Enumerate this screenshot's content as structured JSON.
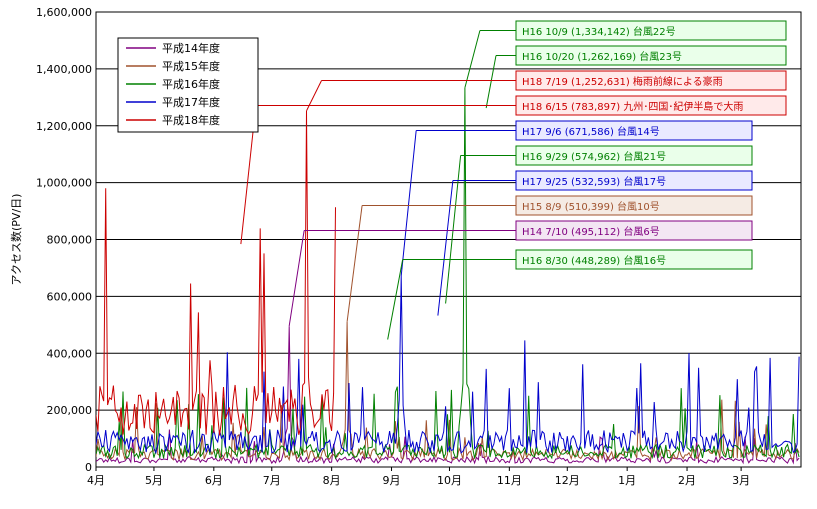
{
  "chart_data": {
    "type": "line",
    "ylabel": "アクセス数(PV/日)",
    "ylim": [
      0,
      1600000
    ],
    "yticks": [
      "0",
      "200,000",
      "400,000",
      "600,000",
      "800,000",
      "1,000,000",
      "1,200,000",
      "1,400,000",
      "1,600,000"
    ],
    "months": [
      "4月",
      "5月",
      "6月",
      "7月",
      "8月",
      "9月",
      "10月",
      "11月",
      "12月",
      "1月",
      "2月",
      "3月"
    ],
    "grid": true,
    "legend_position": "top-left",
    "series": [
      {
        "name": "平成14年度",
        "color": "#800080",
        "baseline": 25000,
        "peak_date": "07-10",
        "peak_value": 495112
      },
      {
        "name": "平成15年度",
        "color": "#a0522d",
        "baseline": 45000,
        "peak_date": "08-09",
        "peak_value": 510399
      },
      {
        "name": "平成16年度",
        "color": "#008000",
        "baseline": 55000,
        "peak_date": "10-09",
        "peak_value": 1334142
      },
      {
        "name": "平成17年度",
        "color": "#0000cc",
        "baseline": 90000,
        "peak_date": "09-06",
        "peak_value": 671586
      },
      {
        "name": "平成18年度",
        "color": "#cc0000",
        "baseline": 200000,
        "peak_date": "07-19",
        "peak_value": 1252631,
        "end_date": "08-03"
      }
    ],
    "annotations": [
      {
        "label": "H16  10/9 (1,334,142)  台風22号",
        "color": "#008000",
        "fill": "#eaffea",
        "date": "10-09",
        "value": 1334142
      },
      {
        "label": "H16  10/20 (1,262,169)  台風23号",
        "color": "#008000",
        "fill": "#eaffea",
        "date": "10-20",
        "value": 1262169
      },
      {
        "label": "H18  7/19 (1,252,631)  梅雨前線による豪雨",
        "color": "#cc0000",
        "fill": "#ffeaea",
        "date": "07-19",
        "value": 1252631
      },
      {
        "label": "H18  6/15 (783,897)  九州･四国･紀伊半島で大雨",
        "color": "#cc0000",
        "fill": "#ffeaea",
        "date": "06-15",
        "value": 783897
      },
      {
        "label": "H17  9/6 (671,586)  台風14号",
        "color": "#0000cc",
        "fill": "#eaeaff",
        "date": "09-06",
        "value": 671586
      },
      {
        "label": "H16  9/29 (574,962)  台風21号",
        "color": "#008000",
        "fill": "#eaffea",
        "date": "09-29",
        "value": 574962
      },
      {
        "label": "H17  9/25 (532,593)  台風17号",
        "color": "#0000cc",
        "fill": "#eaeaff",
        "date": "09-25",
        "value": 532593
      },
      {
        "label": "H15  8/9 (510,399)  台風10号",
        "color": "#a0522d",
        "fill": "#f5ebe4",
        "date": "08-09",
        "value": 510399
      },
      {
        "label": "H14  7/10 (495,112)  台風6号",
        "color": "#800080",
        "fill": "#f3e6f3",
        "date": "07-10",
        "value": 495112
      },
      {
        "label": "H16  8/30 (448,289)  台風16号",
        "color": "#008000",
        "fill": "#eaffea",
        "date": "08-30",
        "value": 448289
      }
    ]
  }
}
